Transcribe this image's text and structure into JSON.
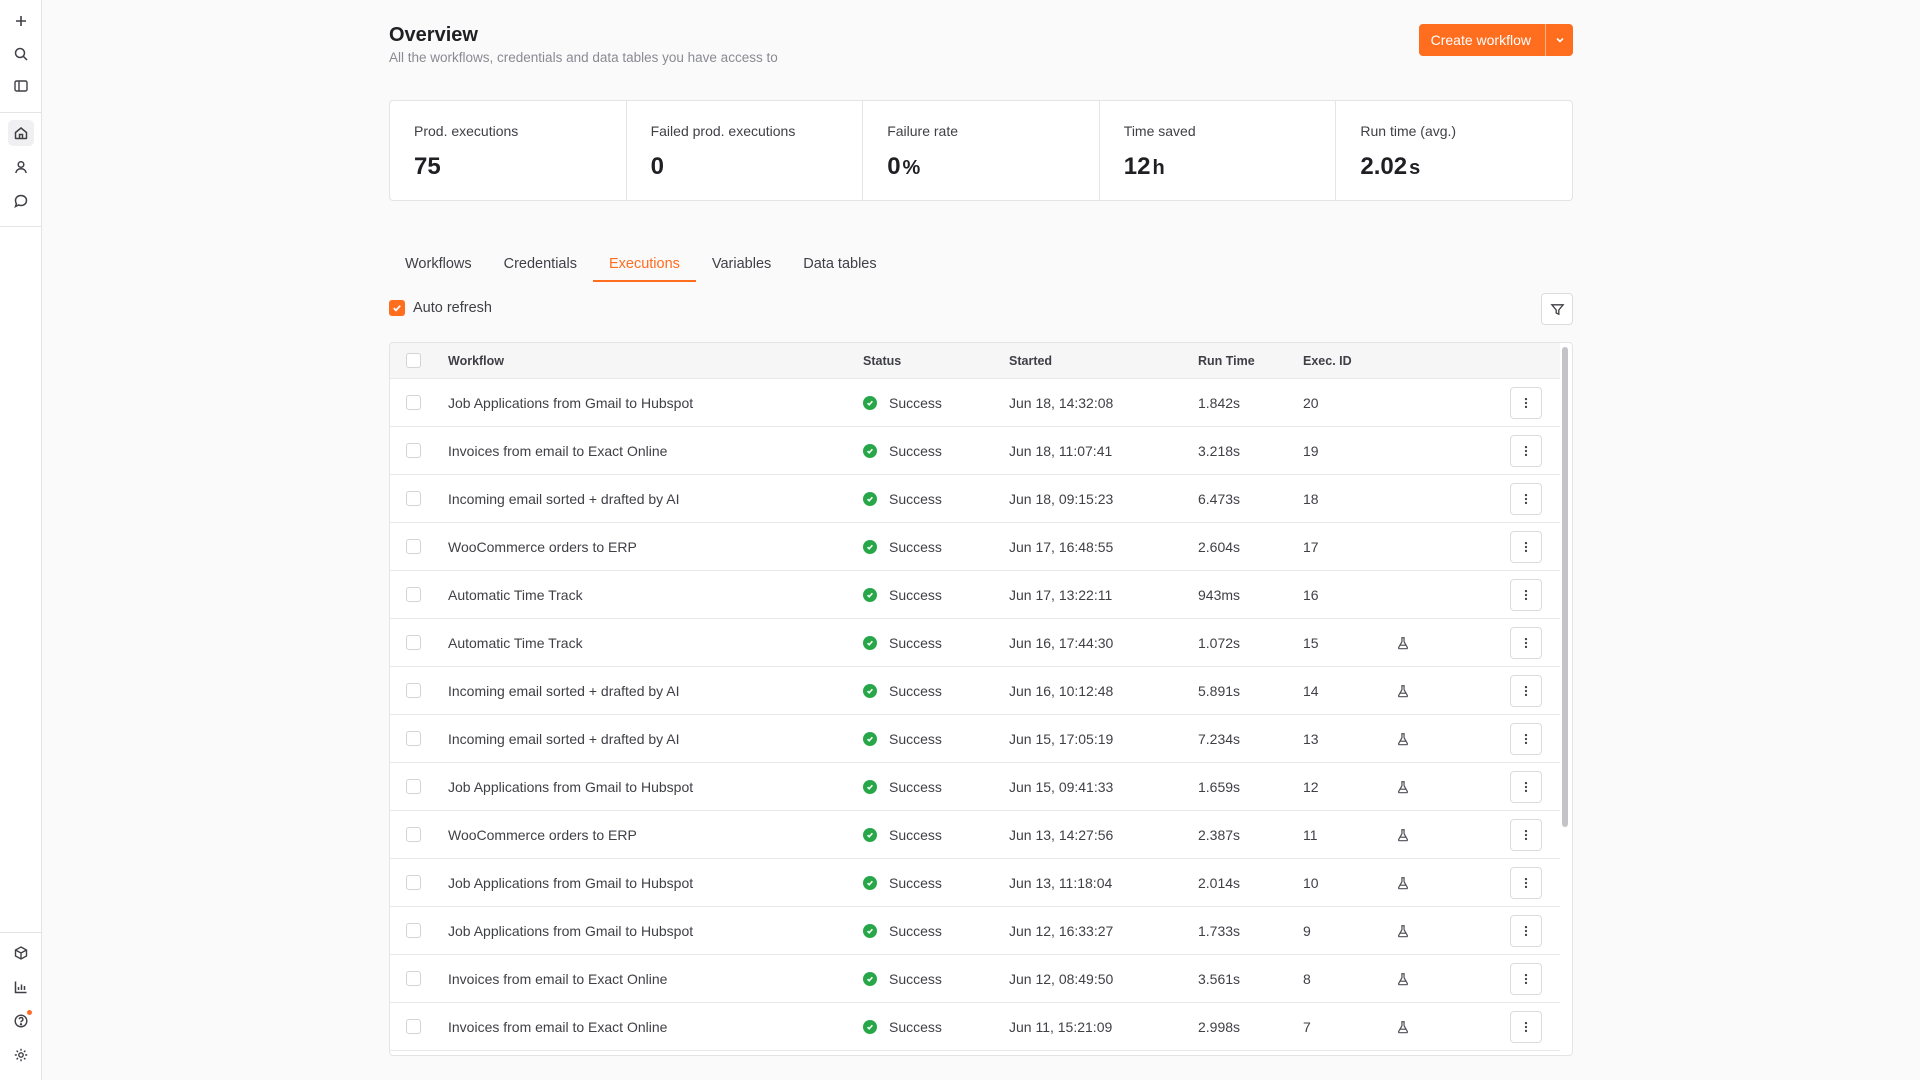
{
  "header": {
    "title": "Overview",
    "subtitle": "All the workflows, credentials and data tables you have access to",
    "create_button": "Create workflow"
  },
  "stats": [
    {
      "label": "Prod. executions",
      "value": "75",
      "unit": ""
    },
    {
      "label": "Failed prod. executions",
      "value": "0",
      "unit": ""
    },
    {
      "label": "Failure rate",
      "value": "0",
      "unit": "%"
    },
    {
      "label": "Time saved",
      "value": "12",
      "unit": "h"
    },
    {
      "label": "Run time (avg.)",
      "value": "2.02",
      "unit": "s"
    }
  ],
  "tabs": [
    {
      "label": "Workflows",
      "active": false
    },
    {
      "label": "Credentials",
      "active": false
    },
    {
      "label": "Executions",
      "active": true
    },
    {
      "label": "Variables",
      "active": false
    },
    {
      "label": "Data tables",
      "active": false
    }
  ],
  "auto_refresh": {
    "label": "Auto refresh",
    "checked": true
  },
  "table": {
    "columns": {
      "workflow": "Workflow",
      "status": "Status",
      "started": "Started",
      "run_time": "Run Time",
      "exec_id": "Exec. ID"
    },
    "rows": [
      {
        "workflow": "Job Applications from Gmail to Hubspot",
        "status": "Success",
        "started": "Jun 18, 14:32:08",
        "run_time": "1.842s",
        "exec_id": "20",
        "test": false
      },
      {
        "workflow": "Invoices from email to Exact Online",
        "status": "Success",
        "started": "Jun 18, 11:07:41",
        "run_time": "3.218s",
        "exec_id": "19",
        "test": false
      },
      {
        "workflow": "Incoming email sorted + drafted by AI",
        "status": "Success",
        "started": "Jun 18, 09:15:23",
        "run_time": "6.473s",
        "exec_id": "18",
        "test": false
      },
      {
        "workflow": "WooCommerce orders to ERP",
        "status": "Success",
        "started": "Jun 17, 16:48:55",
        "run_time": "2.604s",
        "exec_id": "17",
        "test": false
      },
      {
        "workflow": "Automatic Time Track",
        "status": "Success",
        "started": "Jun 17, 13:22:11",
        "run_time": "943ms",
        "exec_id": "16",
        "test": false
      },
      {
        "workflow": "Automatic Time Track",
        "status": "Success",
        "started": "Jun 16, 17:44:30",
        "run_time": "1.072s",
        "exec_id": "15",
        "test": true
      },
      {
        "workflow": "Incoming email sorted + drafted by AI",
        "status": "Success",
        "started": "Jun 16, 10:12:48",
        "run_time": "5.891s",
        "exec_id": "14",
        "test": true
      },
      {
        "workflow": "Incoming email sorted + drafted by AI",
        "status": "Success",
        "started": "Jun 15, 17:05:19",
        "run_time": "7.234s",
        "exec_id": "13",
        "test": true
      },
      {
        "workflow": "Job Applications from Gmail to Hubspot",
        "status": "Success",
        "started": "Jun 15, 09:41:33",
        "run_time": "1.659s",
        "exec_id": "12",
        "test": true
      },
      {
        "workflow": "WooCommerce orders to ERP",
        "status": "Success",
        "started": "Jun 13, 14:27:56",
        "run_time": "2.387s",
        "exec_id": "11",
        "test": true
      },
      {
        "workflow": "Job Applications from Gmail to Hubspot",
        "status": "Success",
        "started": "Jun 13, 11:18:04",
        "run_time": "2.014s",
        "exec_id": "10",
        "test": true
      },
      {
        "workflow": "Job Applications from Gmail to Hubspot",
        "status": "Success",
        "started": "Jun 12, 16:33:27",
        "run_time": "1.733s",
        "exec_id": "9",
        "test": true
      },
      {
        "workflow": "Invoices from email to Exact Online",
        "status": "Success",
        "started": "Jun 12, 08:49:50",
        "run_time": "3.561s",
        "exec_id": "8",
        "test": true
      },
      {
        "workflow": "Invoices from email to Exact Online",
        "status": "Success",
        "started": "Jun 11, 15:21:09",
        "run_time": "2.998s",
        "exec_id": "7",
        "test": true
      }
    ]
  },
  "colors": {
    "accent": "#ff6d1f",
    "success": "#27a74a"
  }
}
